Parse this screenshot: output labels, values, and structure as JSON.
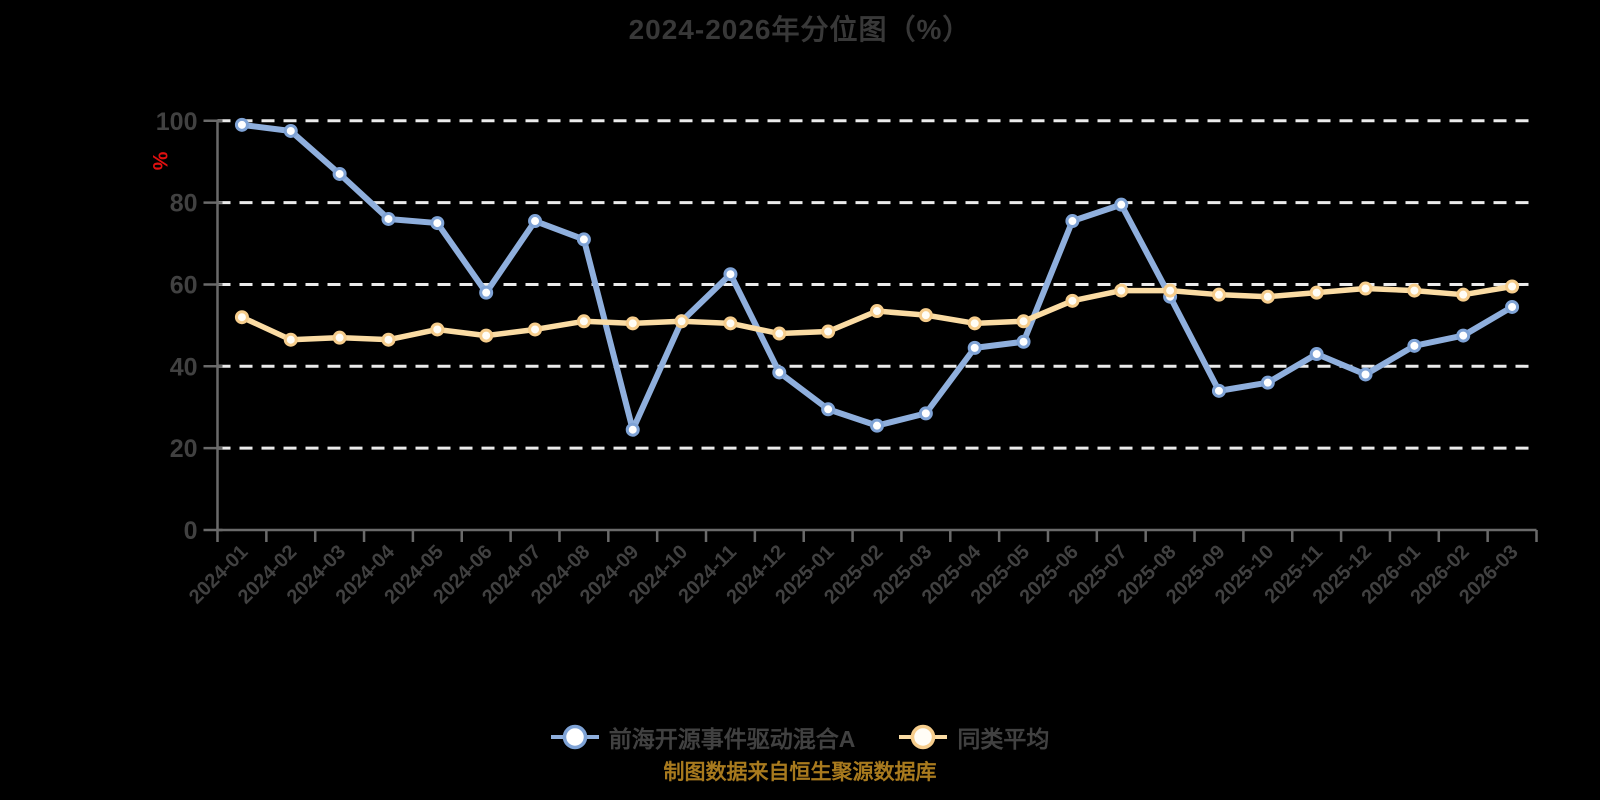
{
  "page": {
    "title": "2024-2026年分位图（%）",
    "footer": "制图数据来自恒生聚源数据库"
  },
  "chart_data": {
    "type": "line",
    "title": "2024-2026年分位图（%）",
    "footer": "制图数据来自恒生聚源数据库",
    "xlabel": "",
    "ylabel": "%",
    "ylim": [
      0,
      100
    ],
    "y_ticks": [
      0,
      20,
      40,
      60,
      80,
      100
    ],
    "grid": "dashed horizontal",
    "legend_position": "bottom",
    "categories": [
      "2024-01",
      "2024-02",
      "2024-03",
      "2024-04",
      "2024-05",
      "2024-06",
      "2024-07",
      "2024-08",
      "2024-09",
      "2024-10",
      "2024-11",
      "2024-12",
      "2025-01",
      "2025-02",
      "2025-03",
      "2025-04",
      "2025-05",
      "2025-06",
      "2025-07",
      "2025-08",
      "2025-09",
      "2025-10",
      "2025-11",
      "2025-12",
      "2026-01",
      "2026-02",
      "2026-03"
    ],
    "series": [
      {
        "name": "前海开源事件驱动混合A",
        "color": "#8fafdd",
        "marker_stroke": "#7fa3d6",
        "marker_fill": "#ffffff",
        "values": [
          99,
          97.5,
          87,
          76,
          75,
          58,
          75.5,
          71,
          24.5,
          51,
          62.5,
          38.5,
          29.5,
          25.5,
          28.5,
          44.5,
          46,
          75.5,
          79.5,
          57,
          34,
          36,
          43,
          38,
          45,
          47.5,
          54.5
        ]
      },
      {
        "name": "同类平均",
        "color": "#fbdca4",
        "marker_stroke": "#f6cd8c",
        "marker_fill": "#fffdf6",
        "values": [
          52,
          46.5,
          47,
          46.5,
          49,
          47.5,
          49,
          51,
          50.5,
          51,
          50.5,
          48,
          48.5,
          53.5,
          52.5,
          50.5,
          51,
          56,
          58.5,
          58.5,
          57.5,
          57,
          58,
          59,
          58.5,
          57.5,
          59.5
        ]
      }
    ],
    "style": {
      "background": "#000000",
      "title_color": "#383838",
      "label_color": "#414141",
      "axis_color": "#6a6a6a",
      "grid_color": "#ebebeb",
      "ylabel_color": "#e01010",
      "footer_color": "#a87a1e"
    }
  }
}
